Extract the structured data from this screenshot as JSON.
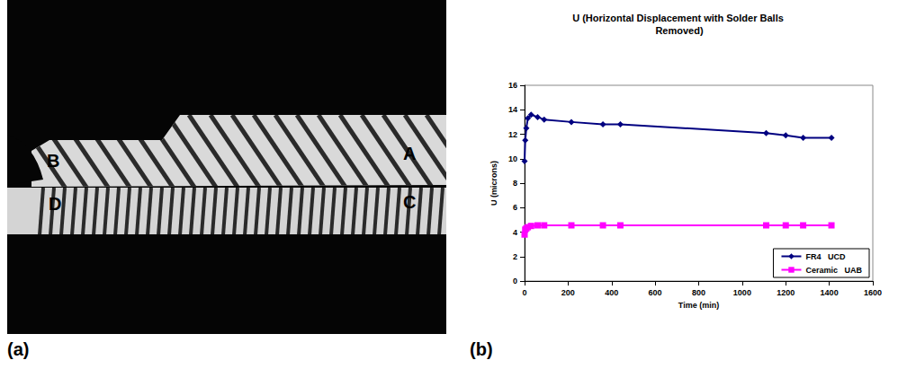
{
  "chart_data": {
    "type": "line",
    "title": "U (Horizontal Displacement with Solder Balls Removed)",
    "x_label": "Time (min)",
    "y_label": "U (microns)",
    "x": [
      0,
      3,
      8,
      15,
      30,
      60,
      90,
      215,
      360,
      440,
      1110,
      1200,
      1280,
      1410
    ],
    "series": [
      {
        "name": "FR4   UCD",
        "color": "#000080",
        "marker": "diamond",
        "values": [
          9.8,
          11.5,
          12.5,
          13.3,
          13.6,
          13.4,
          13.2,
          13.0,
          12.8,
          12.8,
          12.1,
          11.9,
          11.7,
          11.7
        ]
      },
      {
        "name": "Ceramic   UAB",
        "color": "#ff00ff",
        "marker": "square",
        "values": [
          3.8,
          4.2,
          4.3,
          4.4,
          4.5,
          4.55,
          4.55,
          4.55,
          4.55,
          4.55,
          4.55,
          4.55,
          4.55,
          4.55
        ]
      }
    ],
    "xlim": [
      0,
      1600
    ],
    "xticks": [
      0,
      200,
      400,
      600,
      800,
      1000,
      1200,
      1400,
      1600
    ],
    "ylim": [
      0,
      16
    ],
    "yticks": [
      0,
      2,
      4,
      6,
      8,
      10,
      12,
      14,
      16
    ],
    "grid": false,
    "legend": "lower right"
  },
  "photo": {
    "labels": [
      "A",
      "B",
      "C",
      "D"
    ]
  },
  "panel_labels": [
    "(a)",
    "(b)"
  ]
}
